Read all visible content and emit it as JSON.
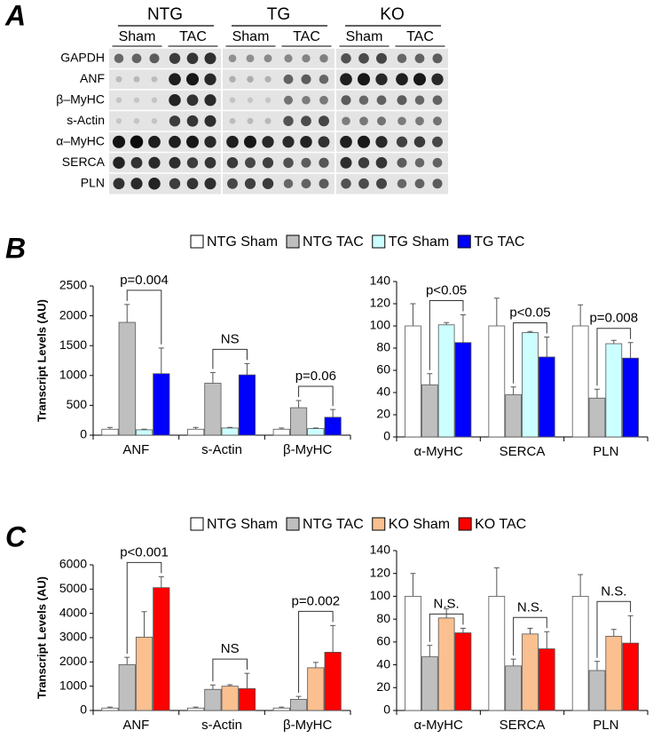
{
  "blot": {
    "label": "A",
    "groups": [
      {
        "name": "NTG",
        "conditions": [
          "Sham",
          "TAC"
        ]
      },
      {
        "name": "TG",
        "conditions": [
          "Sham",
          "TAC"
        ]
      },
      {
        "name": "KO",
        "conditions": [
          "Sham",
          "TAC"
        ]
      }
    ],
    "rows": [
      "GAPDH",
      "ANF",
      "β–MyHC",
      "s-Actin",
      "α–MyHC",
      "SERCA",
      "PLN"
    ]
  },
  "chart_data": [
    {
      "type": "bar",
      "label": "B",
      "legend": true,
      "y_label": "Transcript Levels (AU)",
      "categories": [
        "ANF",
        "s-Actin",
        "β-MyHC"
      ],
      "ylim": [
        0,
        2500
      ],
      "yticks": [
        0,
        500,
        1000,
        1500,
        2000,
        2500
      ],
      "series": [
        {
          "name": "NTG Sham",
          "color": "#ffffff",
          "values": [
            100,
            100,
            100
          ],
          "errors": [
            30,
            30,
            20
          ]
        },
        {
          "name": "NTG TAC",
          "color": "#bfbfbf",
          "values": [
            1890,
            870,
            460
          ],
          "errors": [
            300,
            180,
            120
          ]
        },
        {
          "name": "TG Sham",
          "color": "#ccffff",
          "values": [
            90,
            120,
            110
          ],
          "errors": [
            10,
            10,
            10
          ]
        },
        {
          "name": "TG TAC",
          "color": "#0000ff",
          "values": [
            1030,
            1010,
            300
          ],
          "errors": [
            430,
            190,
            130
          ]
        }
      ],
      "annotations": [
        "p=0.004",
        "NS",
        "p=0.06"
      ]
    },
    {
      "type": "bar",
      "legend": false,
      "categories": [
        "α-MyHC",
        "SERCA",
        "PLN"
      ],
      "ylim": [
        0,
        140
      ],
      "yticks": [
        0,
        20,
        40,
        60,
        80,
        100,
        120,
        140
      ],
      "series": [
        {
          "name": "NTG Sham",
          "color": "#ffffff",
          "values": [
            100,
            100,
            100
          ],
          "errors": [
            20,
            25,
            19
          ]
        },
        {
          "name": "NTG TAC",
          "color": "#bfbfbf",
          "values": [
            47,
            38,
            35
          ],
          "errors": [
            10,
            7,
            8
          ]
        },
        {
          "name": "TG Sham",
          "color": "#ccffff",
          "values": [
            101,
            94,
            84
          ],
          "errors": [
            2,
            1,
            3
          ]
        },
        {
          "name": "TG TAC",
          "color": "#0000ff",
          "values": [
            85,
            72,
            71
          ],
          "errors": [
            25,
            18,
            14
          ]
        }
      ],
      "annotations": [
        "p<0.05",
        "p<0.05",
        "p=0.008"
      ]
    },
    {
      "type": "bar",
      "label": "C",
      "legend": true,
      "y_label": "Transcript Levels (AU)",
      "categories": [
        "ANF",
        "s-Actin",
        "β-MyHC"
      ],
      "ylim": [
        0,
        6000
      ],
      "yticks": [
        0,
        1000,
        2000,
        3000,
        4000,
        5000,
        6000
      ],
      "series": [
        {
          "name": "NTG Sham",
          "color": "#ffffff",
          "values": [
            100,
            100,
            100
          ],
          "errors": [
            40,
            40,
            40
          ]
        },
        {
          "name": "NTG TAC",
          "color": "#bfbfbf",
          "values": [
            1890,
            870,
            460
          ],
          "errors": [
            300,
            180,
            120
          ]
        },
        {
          "name": "KO Sham",
          "color": "#fac090",
          "values": [
            3020,
            1000,
            1760
          ],
          "errors": [
            1050,
            60,
            220
          ]
        },
        {
          "name": "KO TAC",
          "color": "#ff0000",
          "values": [
            5060,
            900,
            2400
          ],
          "errors": [
            450,
            630,
            1100
          ]
        }
      ],
      "annotations": [
        "p<0.001",
        "NS",
        "p=0.002"
      ]
    },
    {
      "type": "bar",
      "legend": false,
      "categories": [
        "α-MyHC",
        "SERCA",
        "PLN"
      ],
      "ylim": [
        0,
        140
      ],
      "yticks": [
        0,
        20,
        40,
        60,
        80,
        100,
        120,
        140
      ],
      "series": [
        {
          "name": "NTG Sham",
          "color": "#ffffff",
          "values": [
            100,
            100,
            100
          ],
          "errors": [
            20,
            25,
            19
          ]
        },
        {
          "name": "NTG TAC",
          "color": "#bfbfbf",
          "values": [
            47,
            39,
            35
          ],
          "errors": [
            10,
            6,
            8
          ]
        },
        {
          "name": "KO Sham",
          "color": "#fac090",
          "values": [
            81,
            67,
            65
          ],
          "errors": [
            8,
            5,
            6
          ]
        },
        {
          "name": "KO TAC",
          "color": "#ff0000",
          "values": [
            68,
            54,
            59
          ],
          "errors": [
            4,
            15,
            24
          ]
        }
      ],
      "annotations": [
        "N.S.",
        "N.S.",
        "N.S."
      ]
    }
  ]
}
